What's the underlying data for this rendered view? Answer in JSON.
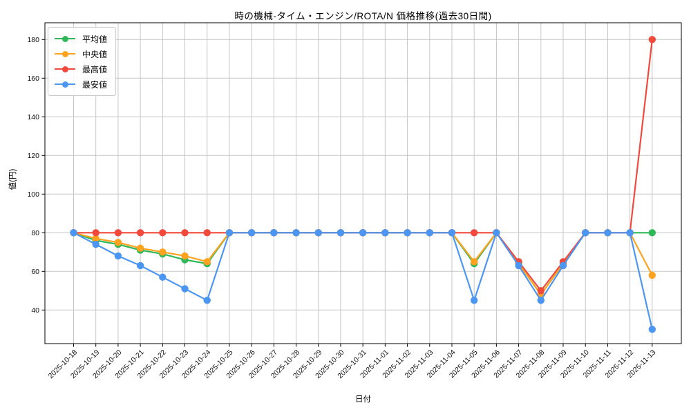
{
  "chart_data": {
    "type": "line",
    "title": "時の機械-タイム・エンジン/ROTA/N 価格推移(過去30日間)",
    "xlabel": "日付",
    "ylabel": "値(円)",
    "grid": true,
    "legend_position": "upper left",
    "yticks": [
      40,
      60,
      80,
      100,
      120,
      140,
      160,
      180
    ],
    "ylim": [
      22.5,
      188.8
    ],
    "x": [
      "2025-10-18",
      "2025-10-19",
      "2025-10-20",
      "2025-10-21",
      "2025-10-22",
      "2025-10-23",
      "2025-10-24",
      "2025-10-25",
      "2025-10-26",
      "2025-10-27",
      "2025-10-28",
      "2025-10-29",
      "2025-10-30",
      "2025-10-31",
      "2025-11-01",
      "2025-11-02",
      "2025-11-03",
      "2025-11-04",
      "2025-11-05",
      "2025-11-06",
      "2025-11-07",
      "2025-11-08",
      "2025-11-09",
      "2025-11-10",
      "2025-11-11",
      "2025-11-12",
      "2025-11-13"
    ],
    "series": [
      {
        "id": "avg",
        "name": "平均値",
        "color": "#2eb857",
        "values": [
          80,
          76,
          74,
          71,
          69,
          66,
          64,
          80,
          80,
          80,
          80,
          80,
          80,
          80,
          80,
          80,
          80,
          80,
          64,
          80,
          64,
          48,
          64,
          80,
          80,
          80,
          80
        ]
      },
      {
        "id": "median",
        "name": "中央値",
        "color": "#ffa21f",
        "values": [
          80,
          77,
          75,
          72,
          70,
          68,
          65,
          80,
          80,
          80,
          80,
          80,
          80,
          80,
          80,
          80,
          80,
          80,
          65,
          80,
          64,
          48,
          64,
          80,
          80,
          80,
          58
        ]
      },
      {
        "id": "max",
        "name": "最高値",
        "color": "#f2493d",
        "values": [
          80,
          80,
          80,
          80,
          80,
          80,
          80,
          80,
          80,
          80,
          80,
          80,
          80,
          80,
          80,
          80,
          80,
          80,
          80,
          80,
          65,
          50,
          65,
          80,
          80,
          80,
          180
        ]
      },
      {
        "id": "min",
        "name": "最安値",
        "color": "#4b96f2",
        "values": [
          80,
          74,
          68,
          63,
          57,
          51,
          45,
          80,
          80,
          80,
          80,
          80,
          80,
          80,
          80,
          80,
          80,
          80,
          45,
          80,
          63,
          45,
          63,
          80,
          80,
          80,
          30
        ]
      }
    ],
    "grid_color": "#c6c6c6",
    "frame_color": "#000000"
  }
}
